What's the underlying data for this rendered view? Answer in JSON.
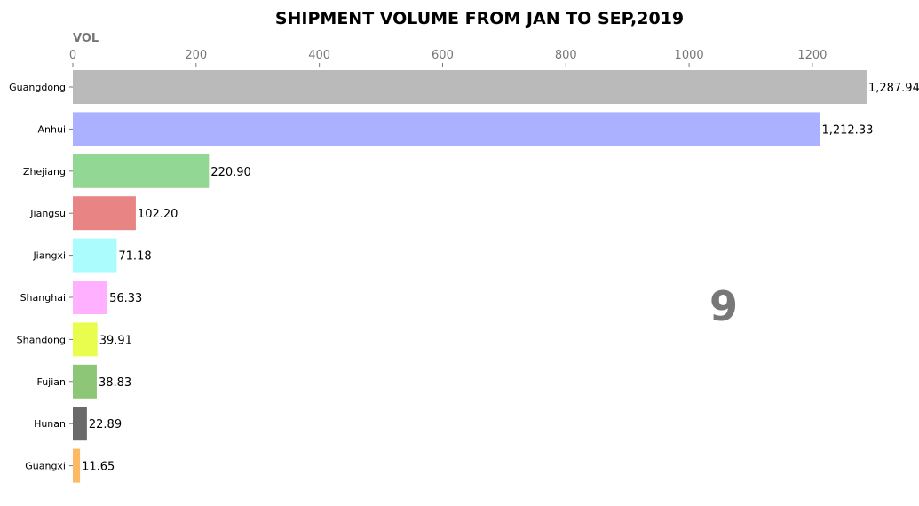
{
  "chart_data": {
    "type": "bar",
    "orientation": "horizontal",
    "title": "SHIPMENT VOLUME FROM JAN TO SEP,2019",
    "xlabel": "VOL",
    "ylabel": "",
    "xlim": [
      0,
      1288
    ],
    "xticks": [
      0,
      200,
      400,
      600,
      800,
      1000,
      1200
    ],
    "grid": false,
    "annotation": "9",
    "categories": [
      "Guangdong",
      "Anhui",
      "Zhejiang",
      "Jiangsu",
      "Jiangxi",
      "Shanghai",
      "Shandong",
      "Fujian",
      "Hunan",
      "Guangxi"
    ],
    "values": [
      1287.94,
      1212.33,
      220.9,
      102.2,
      71.18,
      56.33,
      39.91,
      38.83,
      22.89,
      11.65
    ],
    "value_labels": [
      "1,287.94",
      "1,212.33",
      "220.90",
      "102.20",
      "71.18",
      "56.33",
      "39.91",
      "38.83",
      "22.89",
      "11.65"
    ],
    "colors": [
      "#bababa",
      "#abb0ff",
      "#93d795",
      "#e88584",
      "#abfcfd",
      "#ffb0ff",
      "#e9fd4f",
      "#8dc677",
      "#6a6a6a",
      "#fdb964"
    ]
  }
}
